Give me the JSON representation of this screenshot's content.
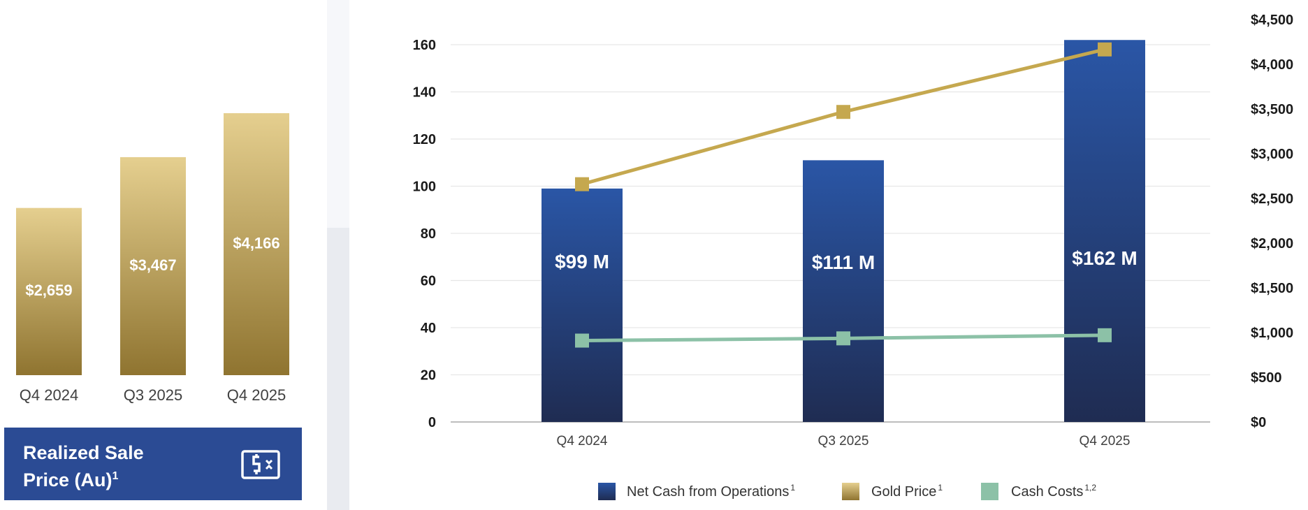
{
  "colors": {
    "gold_light": "#e5cf8f",
    "gold_dark": "#8f7430",
    "navy_light": "#2a56a6",
    "navy_dark": "#1f2c52",
    "gold_line": "#c5a84f",
    "cash_costs": "#8cc1a7",
    "card_bg": "#2b4b94"
  },
  "realized_price_card": {
    "title_line1": "Realized Sale",
    "title_line2": "Price (Au)",
    "title_sup": "1",
    "icon": "dollar-bill-icon"
  },
  "chart_data": [
    {
      "type": "bar",
      "title": "Realized Sale Price (Au)",
      "categories": [
        "Q4 2024",
        "Q3 2025",
        "Q4 2025"
      ],
      "values": [
        2659,
        3467,
        4166
      ],
      "data_labels": [
        "$2,659",
        "$3,467",
        "$4,166"
      ],
      "ylim": [
        0,
        4600
      ],
      "axis_visible": false
    },
    {
      "type": "bar+line",
      "categories": [
        "Q4 2024",
        "Q3 2025",
        "Q4 2025"
      ],
      "y_left": {
        "ticks": [
          0,
          20,
          40,
          60,
          80,
          100,
          120,
          140,
          160
        ],
        "ylim": [
          0,
          170
        ]
      },
      "y_right": {
        "ticks": [
          0,
          500,
          1000,
          1500,
          2000,
          2500,
          3000,
          3500,
          4000,
          4500
        ],
        "tick_labels": [
          "$0",
          "$500",
          "$1,000",
          "$1,500",
          "$2,000",
          "$2,500",
          "$3,000",
          "$3,500",
          "$4,000",
          "$4,500"
        ],
        "ylim": [
          0,
          4500
        ]
      },
      "grid": true,
      "legend_position": "bottom",
      "series": [
        {
          "name": "Net Cash from Operations",
          "legend_sup": "1",
          "kind": "bar",
          "axis": "left",
          "values": [
            99,
            111,
            162
          ],
          "data_labels": [
            "$99 M",
            "$111 M",
            "$162 M"
          ]
        },
        {
          "name": "Gold Price",
          "legend_sup": "1",
          "kind": "line",
          "axis": "right",
          "values": [
            2659,
            3467,
            4166
          ]
        },
        {
          "name": "Cash Costs",
          "legend_sup": "1,2",
          "kind": "line",
          "axis": "right",
          "values": [
            910,
            935,
            970
          ]
        }
      ]
    }
  ]
}
